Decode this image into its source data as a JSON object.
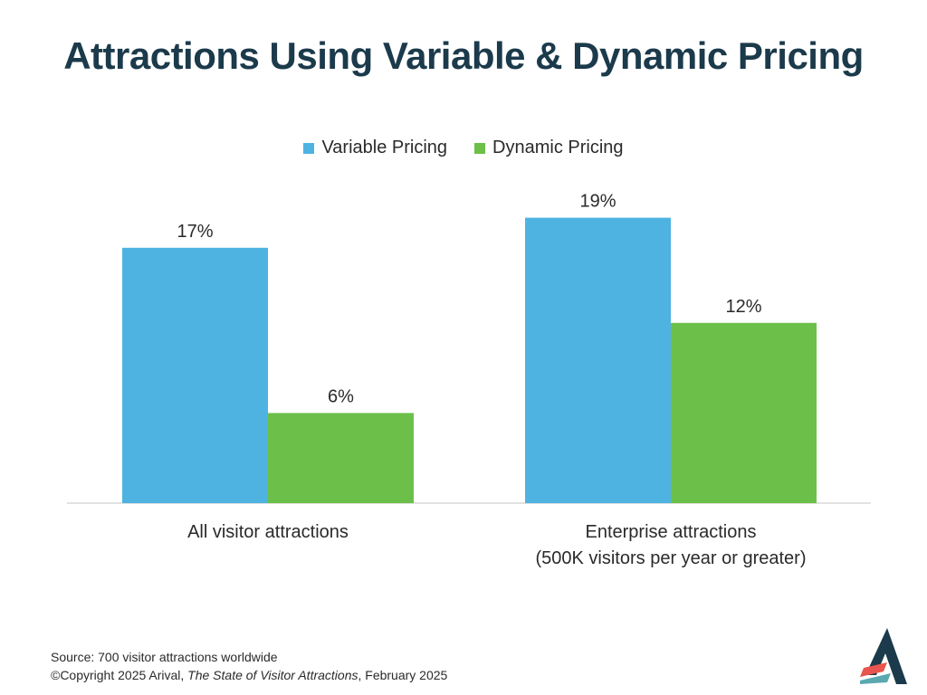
{
  "title": "Attractions Using Variable & Dynamic Pricing",
  "footer": {
    "source_line": "Source: 700 visitor attractions worldwide",
    "copyright_prefix": "©Copyright 2025 Arival, ",
    "copyright_italic": "The State of Visitor Attractions",
    "copyright_suffix": ", February 2025"
  },
  "logo": {
    "icon": "arival-logo-icon",
    "colors": [
      "#1b3a4b",
      "#e8554e",
      "#5aa8b0"
    ]
  },
  "colors": {
    "variable": "#4fb3e2",
    "dynamic": "#6cc04a",
    "title": "#1b3a4b",
    "axis": "#d8d8d8"
  },
  "chart_data": {
    "type": "bar",
    "title": "Attractions Using Variable & Dynamic Pricing",
    "categories": [
      [
        "All visitor attractions"
      ],
      [
        "Enterprise attractions",
        "(500K visitors per year or greater)"
      ]
    ],
    "series": [
      {
        "name": "Variable Pricing",
        "values": [
          17,
          19
        ],
        "labels": [
          "17%",
          "19%"
        ],
        "color": "#4fb3e2"
      },
      {
        "name": "Dynamic Pricing",
        "values": [
          6,
          12
        ],
        "labels": [
          "6%",
          "12%"
        ],
        "color": "#6cc04a"
      }
    ],
    "ylim": [
      0,
      20
    ],
    "grid": false,
    "legend": "top-center",
    "xlabel": "",
    "ylabel": ""
  }
}
